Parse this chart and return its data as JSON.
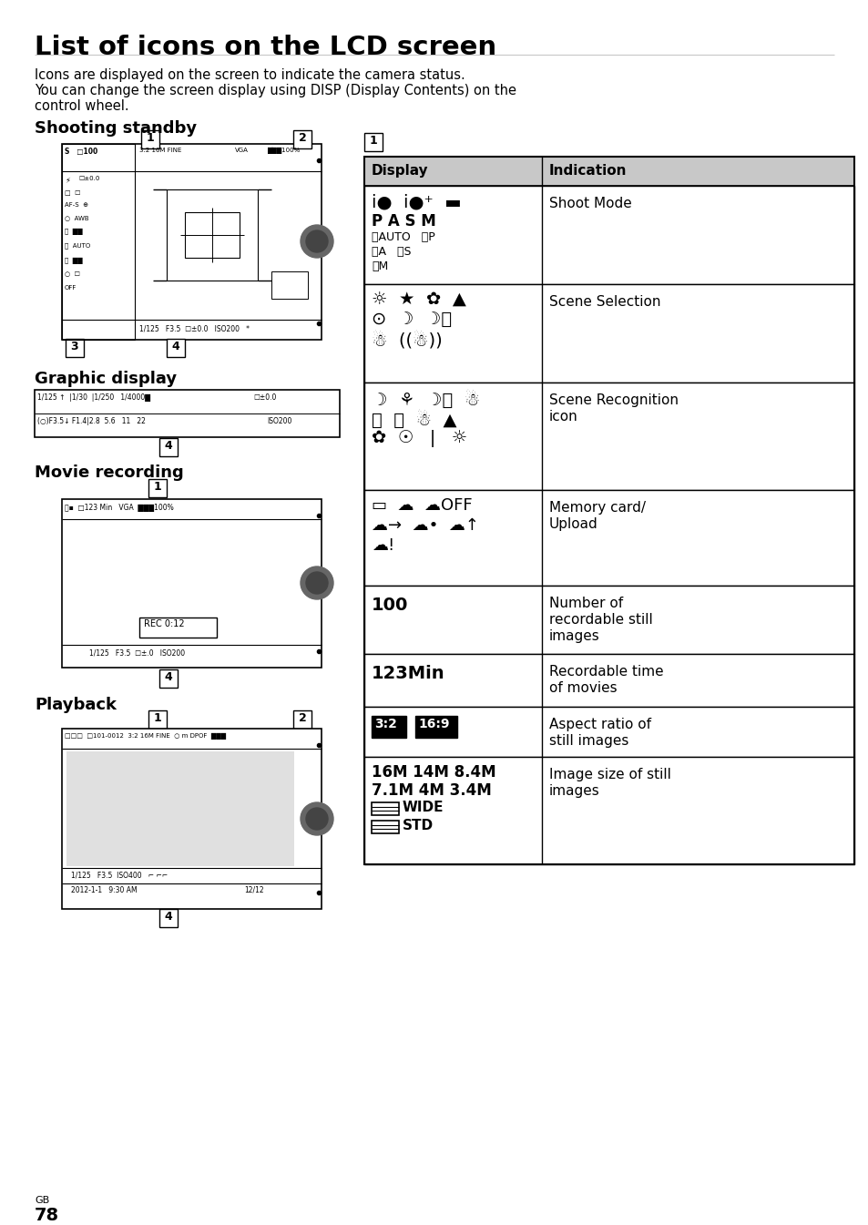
{
  "title": "List of icons on the LCD screen",
  "intro": [
    "Icons are displayed on the screen to indicate the camera status.",
    "You can change the screen display using DISP (Display Contents) on the",
    "control wheel."
  ],
  "s1": "Shooting standby",
  "s2": "Graphic display",
  "s3": "Movie recording",
  "s4": "Playback",
  "col1": "Display",
  "col2": "Indication",
  "ind_shoot": "Shoot Mode",
  "ind_scene": "Scene Selection",
  "ind_recog": "Scene Recognition\nicon",
  "ind_mem": "Memory card/\nUpload",
  "ind_100": "Number of\nrecordable still\nimages",
  "ind_123": "Recordable time\nof movies",
  "ind_ratio": "Aspect ratio of\nstill images",
  "ind_size": "Image size of still\nimages",
  "page": "78",
  "gb": "GB",
  "white": "#ffffff",
  "black": "#000000",
  "lgray": "#c8c8c8",
  "dgray": "#888888",
  "vlgray": "#e0e0e0"
}
